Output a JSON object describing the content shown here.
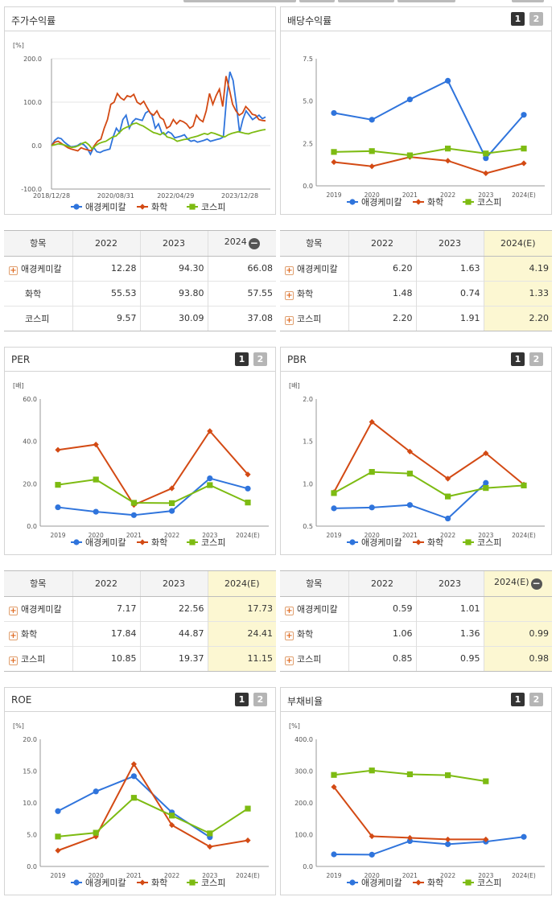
{
  "colors": {
    "company": "#2f74dc",
    "sector": "#d34a14",
    "index": "#7dbb12"
  },
  "legend": {
    "company": "애경케미칼",
    "sector": "화학",
    "index": "코스피"
  },
  "panels": {
    "return": {
      "title": "주가수익률",
      "unit": "[%]",
      "chart_data": {
        "type": "line",
        "yticks": [
          "200.0",
          "100.0",
          "0.0",
          "-100.0"
        ],
        "ylim": [
          -100,
          200
        ],
        "xticks": [
          "2018/12/28",
          "2020/08/31",
          "2022/04/29",
          "2023/12/28"
        ],
        "x_index_range": [
          0,
          100
        ],
        "xtick_index": [
          0,
          30,
          58,
          88
        ],
        "series": [
          {
            "name": "애경케미칼",
            "key": "company",
            "values": [
              0,
              12,
              18,
              16,
              8,
              2,
              -3,
              -2,
              0,
              5,
              2,
              -6,
              -20,
              -4,
              -14,
              -16,
              -12,
              -10,
              -8,
              20,
              40,
              30,
              60,
              70,
              40,
              55,
              62,
              60,
              58,
              75,
              80,
              70,
              40,
              50,
              30,
              25,
              32,
              28,
              18,
              20,
              22,
              25,
              15,
              10,
              12,
              8,
              10,
              12,
              15,
              10,
              12,
              14,
              16,
              20,
              110,
              170,
              150,
              95,
              30,
              60,
              80,
              70,
              60,
              65,
              70,
              62,
              66
            ]
          },
          {
            "name": "화학",
            "key": "sector",
            "values": [
              0,
              8,
              10,
              5,
              0,
              -5,
              -8,
              -10,
              -12,
              -5,
              -8,
              -10,
              -12,
              0,
              10,
              15,
              40,
              60,
              95,
              100,
              120,
              110,
              105,
              115,
              112,
              118,
              100,
              95,
              102,
              88,
              75,
              70,
              80,
              65,
              60,
              40,
              45,
              60,
              50,
              58,
              55,
              50,
              40,
              45,
              70,
              60,
              55,
              80,
              120,
              95,
              115,
              130,
              90,
              160,
              130,
              95,
              80,
              70,
              75,
              90,
              82,
              72,
              70,
              60,
              58,
              57
            ]
          },
          {
            "name": "코스피",
            "key": "index",
            "values": [
              0,
              2,
              4,
              3,
              1,
              -2,
              -4,
              -3,
              0,
              5,
              8,
              2,
              -8,
              0,
              5,
              8,
              10,
              15,
              20,
              22,
              30,
              38,
              42,
              45,
              50,
              52,
              48,
              45,
              40,
              35,
              30,
              28,
              25,
              30,
              20,
              18,
              15,
              10,
              12,
              14,
              15,
              18,
              20,
              22,
              25,
              28,
              26,
              30,
              28,
              25,
              22,
              20,
              25,
              28,
              30,
              32,
              30,
              28,
              27,
              30,
              32,
              34,
              36,
              37
            ]
          }
        ]
      }
    },
    "dividend": {
      "title": "배당수익률",
      "unit": "",
      "chart_data": {
        "type": "line",
        "categories": [
          "2019",
          "2020",
          "2021",
          "2022",
          "2023",
          "2024(E)"
        ],
        "yticks": [
          "7.5",
          "5.0",
          "2.5",
          "0.0"
        ],
        "ylim": [
          0,
          7.5
        ],
        "series": [
          {
            "name": "애경케미칼",
            "key": "company",
            "values": [
              4.3,
              3.9,
              5.1,
              6.2,
              1.63,
              4.19
            ]
          },
          {
            "name": "화학",
            "key": "sector",
            "values": [
              1.4,
              1.15,
              1.7,
              1.48,
              0.74,
              1.33
            ]
          },
          {
            "name": "코스피",
            "key": "index",
            "values": [
              2.0,
              2.05,
              1.8,
              2.2,
              1.91,
              2.2
            ]
          }
        ]
      }
    },
    "per": {
      "title": "PER",
      "unit": "[배]",
      "chart_data": {
        "type": "line",
        "categories": [
          "2019",
          "2020",
          "2021",
          "2022",
          "2023",
          "2024(E)"
        ],
        "yticks": [
          "60.0",
          "40.0",
          "20.0",
          "0.0"
        ],
        "ylim": [
          0,
          60
        ],
        "series": [
          {
            "name": "애경케미칼",
            "key": "company",
            "values": [
              8.9,
              6.8,
              5.2,
              7.17,
              22.56,
              17.73
            ]
          },
          {
            "name": "화학",
            "key": "sector",
            "values": [
              36.0,
              38.5,
              10.0,
              17.84,
              44.87,
              24.41
            ]
          },
          {
            "name": "코스피",
            "key": "index",
            "values": [
              19.5,
              22.0,
              11.0,
              10.85,
              19.37,
              11.15
            ]
          }
        ]
      }
    },
    "pbr": {
      "title": "PBR",
      "unit": "[배]",
      "chart_data": {
        "type": "line",
        "categories": [
          "2019",
          "2020",
          "2021",
          "2022",
          "2023",
          "2024(E)"
        ],
        "yticks": [
          "2.0",
          "1.5",
          "1.0",
          "0.5"
        ],
        "ylim": [
          0.5,
          2.0
        ],
        "series": [
          {
            "name": "애경케미칼",
            "key": "company",
            "values": [
              0.71,
              0.72,
              0.75,
              0.59,
              1.01,
              null
            ]
          },
          {
            "name": "화학",
            "key": "sector",
            "values": [
              0.9,
              1.73,
              1.38,
              1.06,
              1.36,
              0.99
            ]
          },
          {
            "name": "코스피",
            "key": "index",
            "values": [
              0.89,
              1.14,
              1.12,
              0.85,
              0.95,
              0.98
            ]
          }
        ]
      }
    },
    "roe": {
      "title": "ROE",
      "unit": "[%]",
      "chart_data": {
        "type": "line",
        "categories": [
          "2019",
          "2020",
          "2021",
          "2022",
          "2023",
          "2024(E)"
        ],
        "yticks": [
          "20.0",
          "15.0",
          "10.0",
          "5.0",
          "0.0"
        ],
        "ylim": [
          0,
          20
        ],
        "series": [
          {
            "name": "애경케미칼",
            "key": "company",
            "values": [
              8.7,
              11.8,
              14.2,
              8.5,
              4.6,
              null
            ]
          },
          {
            "name": "화학",
            "key": "sector",
            "values": [
              2.5,
              4.7,
              16.1,
              6.5,
              3.1,
              4.1
            ]
          },
          {
            "name": "코스피",
            "key": "index",
            "values": [
              4.7,
              5.3,
              10.8,
              8.0,
              5.2,
              9.1
            ]
          }
        ]
      }
    },
    "debt": {
      "title": "부채비율",
      "unit": "[%]",
      "chart_data": {
        "type": "line",
        "categories": [
          "2019",
          "2020",
          "2021",
          "2022",
          "2023",
          "2024(E)"
        ],
        "yticks": [
          "400.0",
          "300.0",
          "200.0",
          "100.0",
          "0.0"
        ],
        "ylim": [
          0,
          400
        ],
        "series": [
          {
            "name": "애경케미칼",
            "key": "company",
            "values": [
              38,
              37,
              80,
              70,
              78,
              93
            ]
          },
          {
            "name": "화학",
            "key": "sector",
            "values": [
              250,
              95,
              90,
              85,
              85,
              null
            ]
          },
          {
            "name": "코스피",
            "key": "index",
            "values": [
              288,
              302,
              290,
              287,
              268,
              null
            ]
          }
        ]
      }
    }
  },
  "tables": {
    "return": {
      "headers": [
        "항목",
        "2022",
        "2023",
        "2024"
      ],
      "rows": [
        {
          "label": "애경케미칼",
          "plus": true,
          "values": [
            "12.28",
            "94.30",
            "66.08"
          ]
        },
        {
          "label": "화학",
          "plus": false,
          "values": [
            "55.53",
            "93.80",
            "57.55"
          ]
        },
        {
          "label": "코스피",
          "plus": false,
          "values": [
            "9.57",
            "30.09",
            "37.08"
          ]
        }
      ]
    },
    "dividend": {
      "headers": [
        "항목",
        "2022",
        "2023",
        "2024(E)"
      ],
      "rows": [
        {
          "label": "애경케미칼",
          "plus": true,
          "values": [
            "6.20",
            "1.63",
            "4.19"
          ]
        },
        {
          "label": "화학",
          "plus": true,
          "values": [
            "1.48",
            "0.74",
            "1.33"
          ]
        },
        {
          "label": "코스피",
          "plus": true,
          "values": [
            "2.20",
            "1.91",
            "2.20"
          ]
        }
      ]
    },
    "per": {
      "headers": [
        "항목",
        "2022",
        "2023",
        "2024(E)"
      ],
      "rows": [
        {
          "label": "애경케미칼",
          "plus": true,
          "values": [
            "7.17",
            "22.56",
            "17.73"
          ]
        },
        {
          "label": "화학",
          "plus": true,
          "values": [
            "17.84",
            "44.87",
            "24.41"
          ]
        },
        {
          "label": "코스피",
          "plus": true,
          "values": [
            "10.85",
            "19.37",
            "11.15"
          ]
        }
      ]
    },
    "pbr": {
      "headers": [
        "항목",
        "2022",
        "2023",
        "2024(E)"
      ],
      "rows": [
        {
          "label": "애경케미칼",
          "plus": true,
          "values": [
            "0.59",
            "1.01",
            ""
          ]
        },
        {
          "label": "화학",
          "plus": true,
          "values": [
            "1.06",
            "1.36",
            "0.99"
          ]
        },
        {
          "label": "코스피",
          "plus": true,
          "values": [
            "0.85",
            "0.95",
            "0.98"
          ]
        }
      ]
    }
  },
  "buttons": {
    "one": "1",
    "two": "2"
  }
}
